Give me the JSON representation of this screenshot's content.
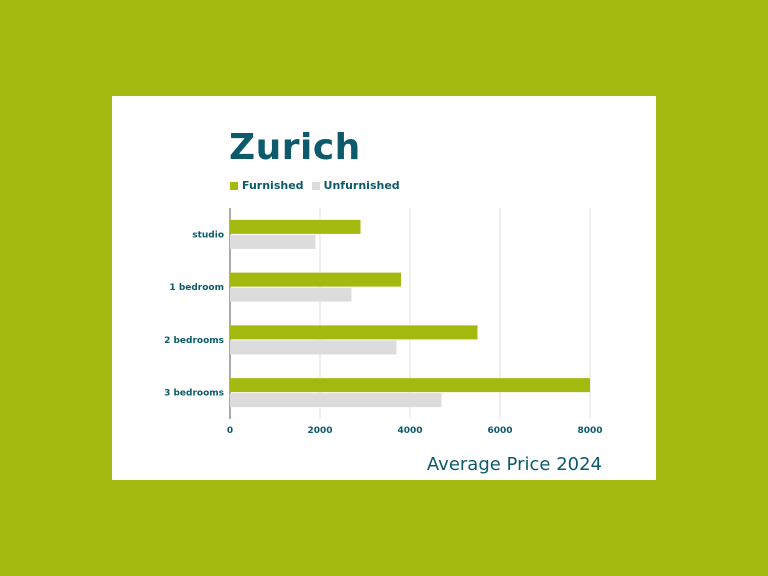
{
  "chart_data": {
    "type": "bar",
    "orientation": "horizontal",
    "title": "Zurich",
    "footer": "Average Price 2024",
    "categories": [
      "studio",
      "1 bedroom",
      "2 bedrooms",
      "3 bedrooms"
    ],
    "series": [
      {
        "name": "Furnished",
        "values": [
          2900,
          3800,
          5500,
          8000
        ],
        "color": "#a3b90f"
      },
      {
        "name": "Unfurnished",
        "values": [
          1900,
          2700,
          3700,
          4700
        ],
        "color": "#dcdcdc"
      }
    ],
    "xlim": [
      0,
      8000
    ],
    "xticks": [
      "0",
      "2000",
      "4000",
      "6000",
      "8000"
    ],
    "grid": true,
    "legend_placement": "top-left"
  }
}
